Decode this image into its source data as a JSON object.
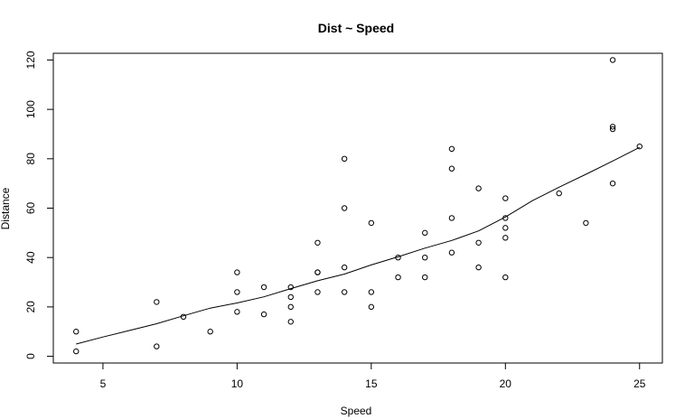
{
  "chart_data": {
    "type": "scatter",
    "title": "Dist ~ Speed",
    "xlabel": "Speed",
    "ylabel": "Distance",
    "xlim": [
      3.15,
      25.85
    ],
    "ylim": [
      -2.72,
      122.72
    ],
    "x_ticks": [
      5,
      10,
      15,
      20,
      25
    ],
    "y_ticks": [
      0,
      20,
      40,
      60,
      80,
      100,
      120
    ],
    "grid": false,
    "legend": "none",
    "colors": {
      "points": "#000000",
      "line": "#000000",
      "frame": "#000000"
    },
    "points": {
      "x": [
        4,
        4,
        7,
        7,
        8,
        9,
        10,
        10,
        10,
        11,
        11,
        12,
        12,
        12,
        12,
        13,
        13,
        13,
        13,
        14,
        14,
        14,
        14,
        15,
        15,
        15,
        16,
        16,
        17,
        17,
        17,
        18,
        18,
        18,
        18,
        19,
        19,
        19,
        20,
        20,
        20,
        20,
        20,
        22,
        23,
        24,
        24,
        24,
        24,
        25
      ],
      "y": [
        2,
        10,
        4,
        22,
        16,
        10,
        18,
        26,
        34,
        17,
        28,
        14,
        20,
        24,
        28,
        26,
        34,
        34,
        46,
        26,
        36,
        60,
        80,
        20,
        26,
        54,
        32,
        40,
        32,
        40,
        50,
        42,
        56,
        76,
        84,
        36,
        46,
        68,
        32,
        48,
        52,
        56,
        64,
        66,
        54,
        70,
        92,
        93,
        120,
        85
      ]
    },
    "smooth_line": {
      "x": [
        4,
        5,
        6,
        7,
        8,
        9,
        10,
        11,
        12,
        13,
        14,
        15,
        16,
        17,
        18,
        19,
        20,
        21,
        22,
        23,
        24,
        25
      ],
      "y": [
        4.97,
        7.8,
        10.5,
        13.2,
        16.4,
        19.5,
        21.6,
        24.1,
        27.4,
        30.6,
        33.3,
        37.0,
        40.3,
        43.8,
        46.9,
        50.8,
        56.4,
        63.0,
        68.5,
        73.7,
        79.1,
        84.6
      ]
    }
  }
}
